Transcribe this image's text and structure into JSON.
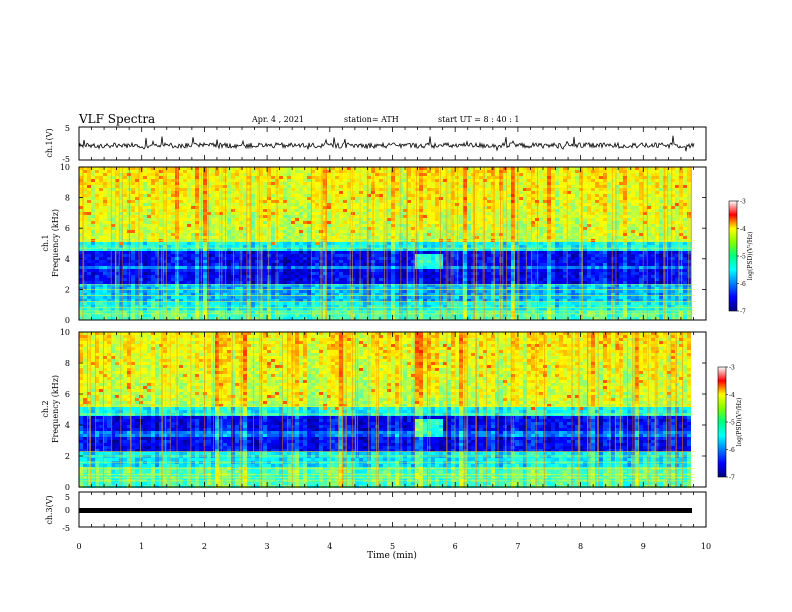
{
  "header": {
    "title": "VLF Spectra",
    "date": "Apr. 4 , 2021",
    "station": "station= ATH",
    "start": "start UT = 8 : 40 : 1"
  },
  "chart_data": [
    {
      "type": "line",
      "ylabel": "ch.1(V)",
      "ylim": [
        -5,
        5
      ],
      "yticks": [
        "5",
        "-5"
      ],
      "xlim": [
        0,
        10
      ]
    },
    {
      "type": "heatmap",
      "ylabel": "ch.1\nFrequency (kHz)",
      "ylabel_line1": "ch.1",
      "ylabel_line2": "Frequency (kHz)",
      "ylim": [
        0,
        10
      ],
      "yticks": [
        "0",
        "2",
        "4",
        "6",
        "8",
        "10"
      ],
      "xlim": [
        0,
        10
      ],
      "data_end_min": 9.82,
      "colorbar": {
        "label": "log(PSD)(V²/Hz)",
        "ticks": [
          "-3",
          "-4",
          "-5",
          "-6",
          "-7"
        ],
        "range": [
          -7,
          -3
        ]
      }
    },
    {
      "type": "heatmap",
      "ylabel": "ch.2\nFrequency (kHz)",
      "ylabel_line1": "ch.2",
      "ylabel_line2": "Frequency (kHz)",
      "ylim": [
        0,
        10
      ],
      "yticks": [
        "0",
        "2",
        "4",
        "6",
        "8",
        "10"
      ],
      "xlim": [
        0,
        10
      ],
      "data_end_min": 9.82,
      "colorbar": {
        "label": "log(PSD)(V²/Hz)",
        "ticks": [
          "-3",
          "-4",
          "-5",
          "-6",
          "-7"
        ],
        "range": [
          -7,
          -3
        ]
      }
    },
    {
      "type": "line",
      "ylabel": "ch.3(V)",
      "ylim": [
        -5,
        5
      ],
      "yticks": [
        "5",
        "0",
        "-5"
      ],
      "xlim": [
        0,
        10
      ],
      "xlabel": "Time (min)",
      "xticks": [
        "0",
        "1",
        "2",
        "3",
        "4",
        "5",
        "6",
        "7",
        "8",
        "9",
        "10"
      ]
    }
  ]
}
